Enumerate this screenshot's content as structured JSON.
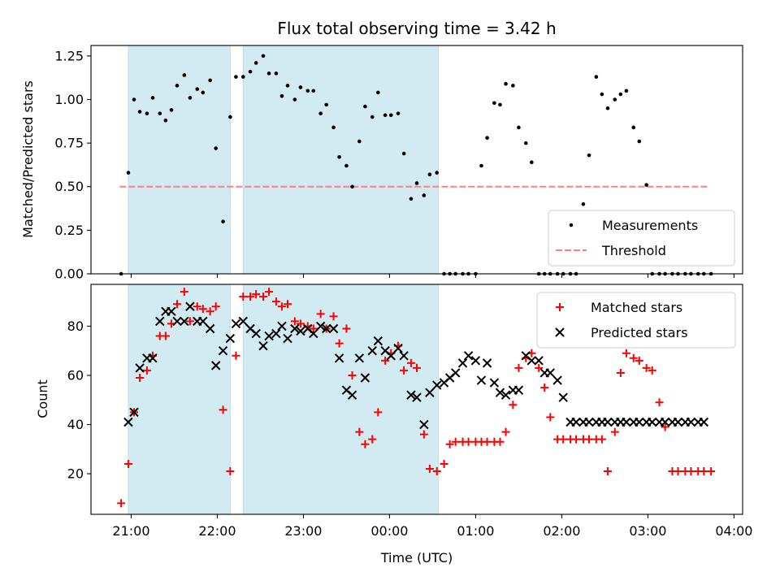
{
  "chart_data": [
    {
      "type": "scatter",
      "title": "Flux total observing time = 3.42 h",
      "xlabel": "",
      "ylabel": "Matched/Predicted stars",
      "x_unit": "time_utc",
      "xlim": [
        "20:32",
        "04:06"
      ],
      "ylim": [
        0,
        1.31
      ],
      "yticks": [
        "0.00",
        "0.25",
        "0.50",
        "0.75",
        "1.00",
        "1.25"
      ],
      "xticks": [
        "21:00",
        "22:00",
        "23:00",
        "00:00",
        "01:00",
        "02:00",
        "03:00",
        "04:00"
      ],
      "xtick_labels_shown": false,
      "grid": false,
      "legend": "lower right",
      "shaded_intervals": [
        [
          "20:58",
          "22:09"
        ],
        [
          "22:18",
          "00:34"
        ]
      ],
      "shade_color": "#add8e6",
      "threshold": {
        "name": "Threshold",
        "y": 0.5,
        "x_range": [
          "20:52",
          "03:42"
        ],
        "color": "#ff7f7f",
        "style": "dashed"
      },
      "series": [
        {
          "name": "Measurements",
          "marker": "dot",
          "color": "#000000",
          "x": [
            "20:53",
            "20:58",
            "21:02",
            "21:06",
            "21:11",
            "21:15",
            "21:20",
            "21:24",
            "21:28",
            "21:32",
            "21:37",
            "21:41",
            "21:46",
            "21:50",
            "21:55",
            "21:59",
            "22:04",
            "22:09",
            "22:13",
            "22:18",
            "22:23",
            "22:27",
            "22:32",
            "22:36",
            "22:41",
            "22:45",
            "22:49",
            "22:54",
            "22:58",
            "23:03",
            "23:07",
            "23:12",
            "23:16",
            "23:21",
            "23:25",
            "23:30",
            "23:34",
            "23:39",
            "23:43",
            "23:48",
            "23:52",
            "23:57",
            "00:01",
            "00:06",
            "00:10",
            "00:15",
            "00:19",
            "00:24",
            "00:28",
            "00:33",
            "00:38",
            "00:42",
            "00:46",
            "00:51",
            "00:55",
            "01:00",
            "01:04",
            "01:08",
            "01:13",
            "01:17",
            "01:21",
            "01:26",
            "01:30",
            "01:35",
            "01:39",
            "01:44",
            "01:48",
            "01:52",
            "01:57",
            "02:01",
            "02:06",
            "02:10",
            "02:15",
            "02:19",
            "02:24",
            "02:28",
            "02:32",
            "02:37",
            "02:41",
            "02:45",
            "02:50",
            "02:54",
            "02:59",
            "03:03",
            "03:08",
            "03:12",
            "03:17",
            "03:21",
            "03:26",
            "03:30",
            "03:35",
            "03:39",
            "03:44"
          ],
          "y": [
            0.0,
            0.58,
            1.0,
            0.93,
            0.92,
            1.01,
            0.92,
            0.88,
            0.94,
            1.08,
            1.14,
            1.01,
            1.06,
            1.04,
            1.11,
            0.72,
            0.3,
            0.9,
            1.13,
            1.13,
            1.16,
            1.21,
            1.25,
            1.15,
            1.15,
            1.02,
            1.08,
            1.0,
            1.07,
            1.05,
            1.05,
            0.92,
            0.97,
            0.84,
            0.67,
            0.62,
            0.5,
            0.76,
            0.96,
            0.9,
            1.04,
            0.91,
            0.91,
            0.92,
            0.69,
            0.43,
            0.52,
            0.45,
            0.57,
            0.58,
            0.0,
            0.0,
            0.0,
            0.0,
            0.0,
            0.0,
            0.62,
            0.78,
            0.98,
            0.97,
            1.09,
            1.08,
            0.84,
            0.75,
            0.64,
            0.0,
            0.0,
            0.0,
            0.0,
            0.0,
            0.0,
            0.0,
            0.4,
            0.68,
            1.13,
            1.03,
            0.95,
            1.0,
            1.03,
            1.05,
            0.84,
            0.76,
            0.51,
            0.0,
            0.0,
            0.0,
            0.0,
            0.0,
            0.0,
            0.0,
            0.0,
            0.0,
            0.0
          ]
        }
      ]
    },
    {
      "type": "scatter",
      "title": "",
      "xlabel": "Time (UTC)",
      "ylabel": "Count",
      "x_unit": "time_utc",
      "xlim": [
        "20:32",
        "04:06"
      ],
      "ylim": [
        3.5,
        97
      ],
      "yticks": [
        "20",
        "40",
        "60",
        "80"
      ],
      "xticks": [
        "21:00",
        "22:00",
        "23:00",
        "00:00",
        "01:00",
        "02:00",
        "03:00",
        "04:00"
      ],
      "xtick_labels_shown": true,
      "grid": false,
      "legend": "upper right",
      "shaded_intervals": [
        [
          "20:58",
          "22:09"
        ],
        [
          "22:18",
          "00:34"
        ]
      ],
      "shade_color": "#add8e6",
      "series": [
        {
          "name": "Matched stars",
          "marker": "plus",
          "color": "#ff0000",
          "x": [
            "20:53",
            "20:58",
            "21:02",
            "21:06",
            "21:11",
            "21:15",
            "21:20",
            "21:24",
            "21:28",
            "21:32",
            "21:37",
            "21:41",
            "21:46",
            "21:50",
            "21:55",
            "21:59",
            "22:04",
            "22:09",
            "22:13",
            "22:18",
            "22:23",
            "22:27",
            "22:32",
            "22:36",
            "22:41",
            "22:45",
            "22:49",
            "22:54",
            "22:58",
            "23:03",
            "23:07",
            "23:12",
            "23:16",
            "23:21",
            "23:25",
            "23:30",
            "23:34",
            "23:39",
            "23:43",
            "23:48",
            "23:52",
            "23:57",
            "00:01",
            "00:06",
            "00:10",
            "00:15",
            "00:19",
            "00:24",
            "00:28",
            "00:33",
            "00:38",
            "00:42",
            "00:46",
            "00:51",
            "00:55",
            "01:00",
            "01:04",
            "01:08",
            "01:13",
            "01:17",
            "01:21",
            "01:26",
            "01:30",
            "01:35",
            "01:39",
            "01:44",
            "01:48",
            "01:52",
            "01:57",
            "02:01",
            "02:06",
            "02:10",
            "02:15",
            "02:19",
            "02:24",
            "02:28",
            "02:32",
            "02:37",
            "02:41",
            "02:45",
            "02:50",
            "02:54",
            "02:59",
            "03:03",
            "03:08",
            "03:12",
            "03:17",
            "03:21",
            "03:26",
            "03:30",
            "03:35",
            "03:39",
            "03:44"
          ],
          "y": [
            8,
            24,
            45,
            59,
            62,
            68,
            76,
            76,
            81,
            89,
            94,
            82,
            88,
            87,
            86,
            88,
            46,
            21,
            68,
            92,
            92,
            93,
            92,
            94,
            90,
            88,
            89,
            82,
            81,
            80,
            79,
            85,
            79,
            84,
            73,
            79,
            60,
            37,
            32,
            34,
            45,
            66,
            69,
            72,
            62,
            65,
            63,
            36,
            22,
            21,
            24,
            32,
            33,
            33,
            33,
            33,
            33,
            33,
            33,
            33,
            37,
            48,
            63,
            67,
            69,
            63,
            55,
            43,
            34,
            34,
            34,
            34,
            34,
            34,
            34,
            34,
            21,
            37,
            61,
            69,
            67,
            66,
            63,
            62,
            49,
            39,
            21,
            21,
            21,
            21,
            21,
            21,
            21
          ]
        },
        {
          "name": "Predicted stars",
          "marker": "x",
          "color": "#000000",
          "x": [
            "20:58",
            "21:02",
            "21:06",
            "21:11",
            "21:15",
            "21:20",
            "21:24",
            "21:28",
            "21:32",
            "21:37",
            "21:41",
            "21:46",
            "21:50",
            "21:55",
            "21:59",
            "22:04",
            "22:09",
            "22:13",
            "22:18",
            "22:23",
            "22:27",
            "22:32",
            "22:36",
            "22:41",
            "22:45",
            "22:49",
            "22:54",
            "22:58",
            "23:03",
            "23:07",
            "23:12",
            "23:16",
            "23:21",
            "23:25",
            "23:30",
            "23:34",
            "23:39",
            "23:43",
            "23:48",
            "23:52",
            "23:57",
            "00:01",
            "00:06",
            "00:10",
            "00:15",
            "00:19",
            "00:24",
            "00:28",
            "00:33",
            "00:38",
            "00:42",
            "00:46",
            "00:51",
            "00:55",
            "01:00",
            "01:04",
            "01:08",
            "01:13",
            "01:17",
            "01:21",
            "01:26",
            "01:30",
            "01:35",
            "01:39",
            "01:44",
            "01:48",
            "01:52",
            "01:57",
            "02:01",
            "02:06",
            "02:10",
            "02:15",
            "02:19",
            "02:24",
            "02:28",
            "02:32",
            "02:37",
            "02:41",
            "02:45",
            "02:50",
            "02:54",
            "02:59",
            "03:03",
            "03:08",
            "03:12",
            "03:17",
            "03:21",
            "03:26",
            "03:30",
            "03:35",
            "03:39"
          ],
          "y": [
            41,
            45,
            63,
            67,
            67,
            82,
            86,
            86,
            82,
            82,
            88,
            82,
            82,
            79,
            64,
            70,
            75,
            81,
            82,
            79,
            77,
            72,
            76,
            77,
            80,
            75,
            79,
            78,
            79,
            77,
            80,
            79,
            79,
            67,
            54,
            52,
            67,
            59,
            70,
            74,
            70,
            68,
            71,
            68,
            52,
            51,
            40,
            53,
            56,
            57,
            59,
            61,
            65,
            68,
            66,
            58,
            65,
            57,
            53,
            52,
            54,
            54,
            68,
            66,
            66,
            61,
            61,
            58,
            51,
            41,
            41,
            41,
            41,
            41,
            41,
            41,
            41,
            41,
            41,
            41,
            41,
            41,
            41,
            41,
            41,
            41,
            41,
            41,
            41,
            41,
            41
          ]
        }
      ]
    }
  ]
}
